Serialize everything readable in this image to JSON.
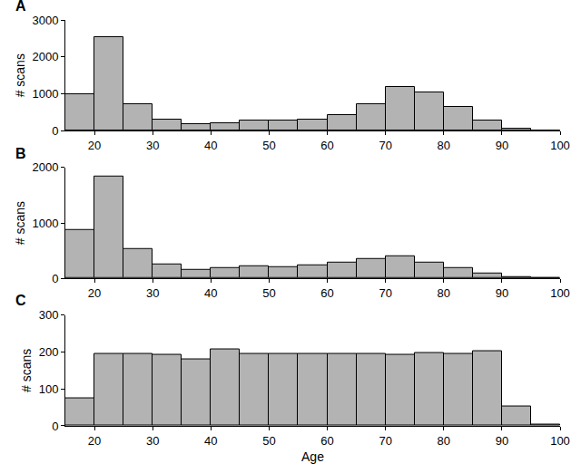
{
  "chart_data": [
    {
      "type": "histogram",
      "title": "A",
      "ylabel": "# scans",
      "bins": [
        15,
        20,
        25,
        30,
        35,
        40,
        45,
        50,
        55,
        60,
        65,
        70,
        75,
        80,
        85,
        90,
        95,
        100
      ],
      "values": [
        1000,
        2530,
        720,
        310,
        180,
        210,
        280,
        290,
        300,
        430,
        720,
        1180,
        1040,
        640,
        280,
        70,
        10
      ],
      "color": "#b3b3b3",
      "xlim": [
        15,
        100
      ],
      "xticks": [
        20,
        30,
        40,
        50,
        60,
        70,
        80,
        90,
        100
      ],
      "ylim": [
        0,
        3000
      ],
      "yticks": [
        0,
        1000,
        2000,
        3000
      ],
      "grid": false
    },
    {
      "type": "histogram",
      "title": "B",
      "ylabel": "# scans",
      "bins": [
        15,
        20,
        25,
        30,
        35,
        40,
        45,
        50,
        55,
        60,
        65,
        70,
        75,
        80,
        85,
        90,
        95,
        100
      ],
      "values": [
        880,
        1840,
        530,
        250,
        150,
        180,
        220,
        210,
        230,
        290,
        350,
        400,
        290,
        190,
        90,
        20,
        3
      ],
      "color": "#b3b3b3",
      "xlim": [
        15,
        100
      ],
      "xticks": [
        20,
        30,
        40,
        50,
        60,
        70,
        80,
        90,
        100
      ],
      "ylim": [
        0,
        2000
      ],
      "yticks": [
        0,
        1000,
        2000
      ],
      "grid": false
    },
    {
      "type": "histogram",
      "title": "C",
      "ylabel": "# scans",
      "xlabel": "Age",
      "bins": [
        15,
        20,
        25,
        30,
        35,
        40,
        45,
        50,
        55,
        60,
        65,
        70,
        75,
        80,
        85,
        90,
        95,
        100
      ],
      "values": [
        75,
        195,
        195,
        192,
        180,
        208,
        195,
        195,
        195,
        195,
        195,
        192,
        196,
        195,
        203,
        53,
        3
      ],
      "color": "#b3b3b3",
      "xlim": [
        15,
        100
      ],
      "xticks": [
        20,
        30,
        40,
        50,
        60,
        70,
        80,
        90,
        100
      ],
      "ylim": [
        0,
        300
      ],
      "yticks": [
        0,
        100,
        200,
        300
      ],
      "grid": false
    }
  ]
}
